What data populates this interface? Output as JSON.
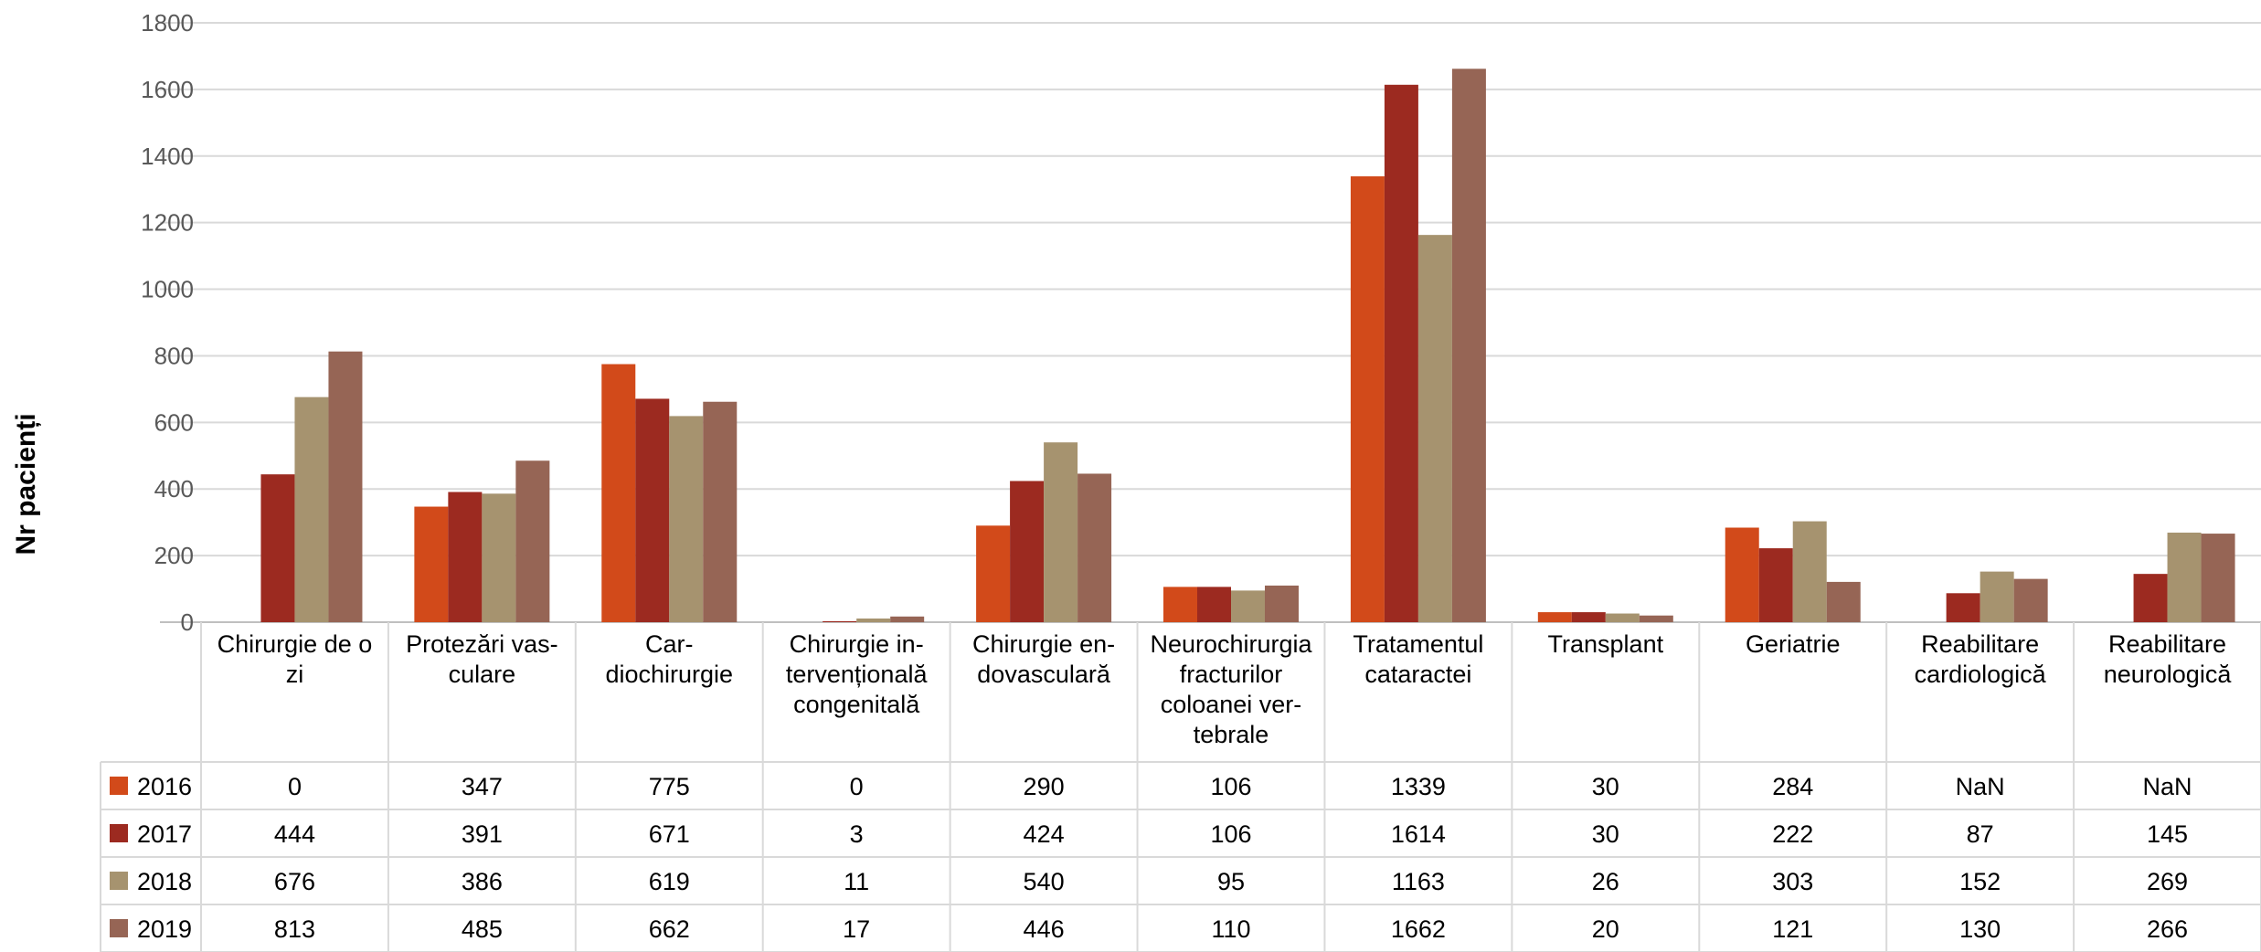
{
  "chart_data": {
    "type": "bar",
    "ylabel": "Nr pacienți",
    "ylim": [
      0,
      1800
    ],
    "yticks": [
      0,
      200,
      400,
      600,
      800,
      1000,
      1200,
      1400,
      1600,
      1800
    ],
    "grid": true,
    "legend": "data-table-left",
    "categories": [
      "Chirurgie de o zi",
      "Protezări vasculare",
      "Cardiochirurgie",
      "Chirurgie intervențională congenitală",
      "Chirurgie endovasculară",
      "Neurochirurgia fracturilor coloanei vertebrale",
      "Tratamentul cataractei",
      "Transplant",
      "Geriatrie",
      "Reabilitare cardiologică",
      "Reabilitare neurologică"
    ],
    "category_label_lines": [
      [
        "Chirurgie de o",
        "zi"
      ],
      [
        "Protezări vas-",
        "culare"
      ],
      [
        "Car-",
        "diochirurgie"
      ],
      [
        "Chirurgie in-",
        "tervențională",
        "congenitală"
      ],
      [
        "Chirurgie en-",
        "dovasculară"
      ],
      [
        "Neurochirurgia",
        "fracturilor",
        "coloanei ver-",
        "tebrale"
      ],
      [
        "Tratamentul",
        "cataractei"
      ],
      [
        "Transplant"
      ],
      [
        "Geriatrie"
      ],
      [
        "Reabilitare",
        "cardiologică"
      ],
      [
        "Reabilitare",
        "neurologică"
      ]
    ],
    "series": [
      {
        "name": "2016",
        "color": "#D24A1A",
        "values": [
          0,
          347,
          775,
          0,
          290,
          106,
          1339,
          30,
          284,
          null,
          null
        ],
        "labels": [
          "0",
          "347",
          "775",
          "0",
          "290",
          "106",
          "1339",
          "30",
          "284",
          "NaN",
          "NaN"
        ]
      },
      {
        "name": "2017",
        "color": "#9C2A20",
        "values": [
          444,
          391,
          671,
          3,
          424,
          106,
          1614,
          30,
          222,
          87,
          145
        ],
        "labels": [
          "444",
          "391",
          "671",
          "3",
          "424",
          "106",
          "1614",
          "30",
          "222",
          "87",
          "145"
        ]
      },
      {
        "name": "2018",
        "color": "#A6936F",
        "values": [
          676,
          386,
          619,
          11,
          540,
          95,
          1163,
          26,
          303,
          152,
          269
        ],
        "labels": [
          "676",
          "386",
          "619",
          "11",
          "540",
          "95",
          "1163",
          "26",
          "303",
          "152",
          "269"
        ]
      },
      {
        "name": "2019",
        "color": "#966555",
        "values": [
          813,
          485,
          662,
          17,
          446,
          110,
          1662,
          20,
          121,
          130,
          266
        ],
        "labels": [
          "813",
          "485",
          "662",
          "17",
          "446",
          "110",
          "1662",
          "20",
          "121",
          "130",
          "266"
        ]
      }
    ]
  }
}
